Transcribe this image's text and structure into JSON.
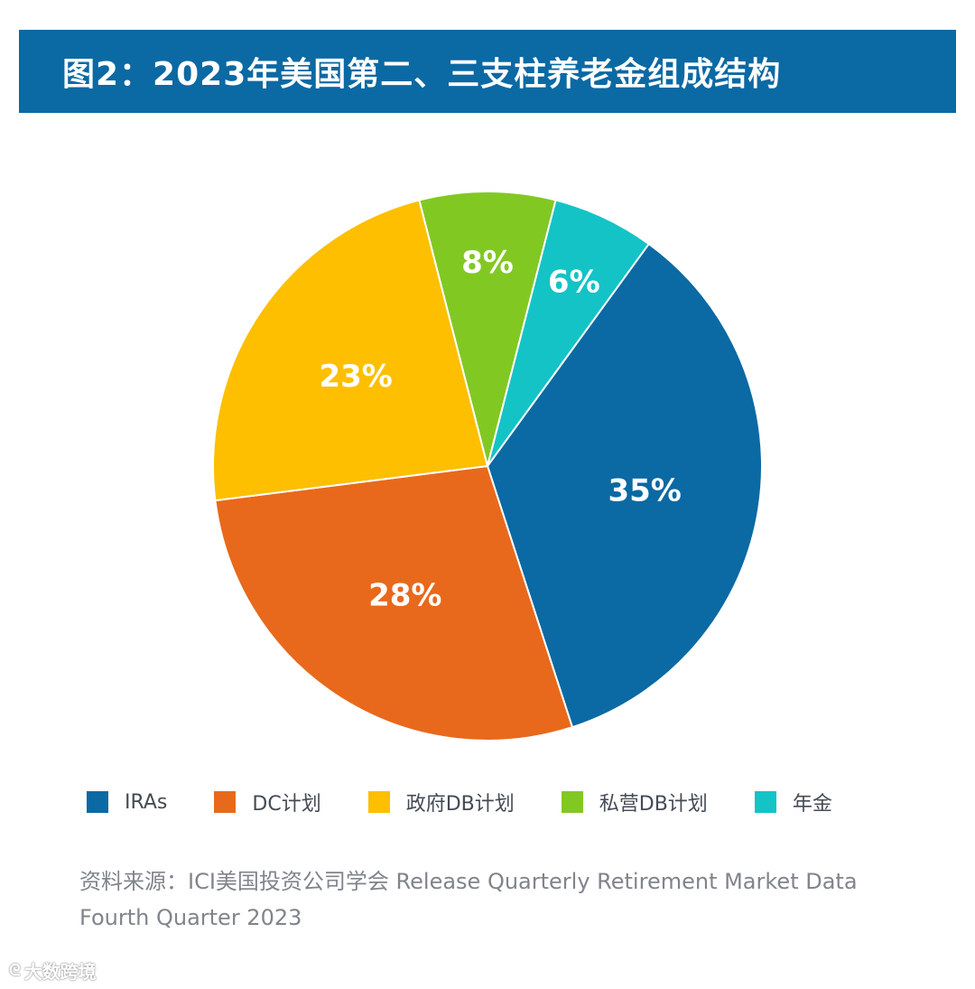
{
  "title": "图2：2023年美国第二、三支柱养老金组成结构",
  "chart_data": {
    "type": "pie",
    "title": "图2：2023年美国第二、三支柱养老金组成结构",
    "slices": [
      {
        "name": "IRAs",
        "value": 35,
        "label": "35%",
        "color": "#0b69a3"
      },
      {
        "name": "DC计划",
        "value": 28,
        "label": "28%",
        "color": "#e8691b"
      },
      {
        "name": "政府DB计划",
        "value": 23,
        "label": "23%",
        "color": "#fdbf00"
      },
      {
        "name": "私营DB计划",
        "value": 8,
        "label": "8%",
        "color": "#82c823"
      },
      {
        "name": "年金",
        "value": 6,
        "label": "6%",
        "color": "#14c3c6"
      }
    ],
    "legend_position": "bottom"
  },
  "legend": [
    {
      "label": "IRAs"
    },
    {
      "label": "DC计划"
    },
    {
      "label": "政府DB计划"
    },
    {
      "label": "私营DB计划"
    },
    {
      "label": "年金"
    }
  ],
  "source": {
    "line1": "资料来源：ICI美国投资公司学会 Release Quarterly Retirement Market Data",
    "line2": "Fourth Quarter 2023"
  },
  "watermark": {
    "text": "大数跨境",
    "icon": "logo-icon"
  }
}
